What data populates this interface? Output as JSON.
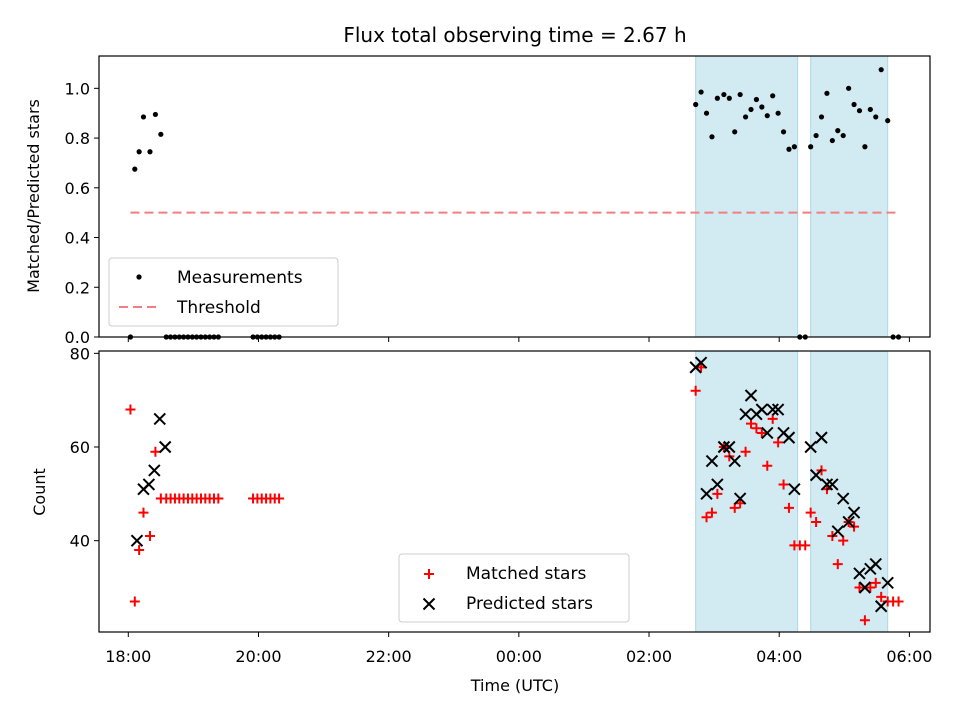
{
  "chart_data": [
    {
      "type": "scatter",
      "title": "Flux total observing time = 2.67 h",
      "xlabel": "",
      "ylabel": "Matched/Predicted stars",
      "ylim": [
        0,
        1.13
      ],
      "yticks": [
        "0.0",
        "0.2",
        "0.4",
        "0.6",
        "0.8",
        "1.0"
      ],
      "legend_position": "lower-left",
      "series": [
        {
          "name": "Measurements",
          "color": "#000000",
          "marker": "dot",
          "points": [
            [
              "18:02",
              0
            ],
            [
              "18:06",
              0.675
            ],
            [
              "18:10",
              0.745
            ],
            [
              "18:14",
              0.885
            ],
            [
              "18:20",
              0.745
            ],
            [
              "18:25",
              0.895
            ],
            [
              "18:30",
              0.815
            ],
            [
              "18:35",
              0
            ],
            [
              "18:39",
              0
            ],
            [
              "18:43",
              0
            ],
            [
              "18:47",
              0
            ],
            [
              "18:51",
              0
            ],
            [
              "18:55",
              0
            ],
            [
              "18:59",
              0
            ],
            [
              "19:03",
              0
            ],
            [
              "19:07",
              0
            ],
            [
              "19:11",
              0
            ],
            [
              "19:15",
              0
            ],
            [
              "19:19",
              0
            ],
            [
              "19:23",
              0
            ],
            [
              "19:55",
              0
            ],
            [
              "19:59",
              0
            ],
            [
              "20:03",
              0
            ],
            [
              "20:07",
              0
            ],
            [
              "20:11",
              0
            ],
            [
              "20:15",
              0
            ],
            [
              "20:19",
              0
            ],
            [
              "02:43",
              0.935
            ],
            [
              "02:48",
              0.985
            ],
            [
              "02:53",
              0.9
            ],
            [
              "02:58",
              0.805
            ],
            [
              "03:03",
              0.96
            ],
            [
              "03:09",
              0.975
            ],
            [
              "03:14",
              0.96
            ],
            [
              "03:19",
              0.825
            ],
            [
              "03:24",
              0.975
            ],
            [
              "03:29",
              0.885
            ],
            [
              "03:34",
              0.915
            ],
            [
              "03:39",
              0.955
            ],
            [
              "03:44",
              0.925
            ],
            [
              "03:49",
              0.89
            ],
            [
              "03:54",
              0.97
            ],
            [
              "03:59",
              0.9
            ],
            [
              "04:04",
              0.825
            ],
            [
              "04:09",
              0.755
            ],
            [
              "04:14",
              0.765
            ],
            [
              "04:19",
              0
            ],
            [
              "04:24",
              0
            ],
            [
              "04:29",
              0.765
            ],
            [
              "04:34",
              0.81
            ],
            [
              "04:39",
              0.885
            ],
            [
              "04:44",
              0.98
            ],
            [
              "04:49",
              0.79
            ],
            [
              "04:54",
              0.83
            ],
            [
              "04:59",
              0.81
            ],
            [
              "05:04",
              1.0
            ],
            [
              "05:09",
              0.935
            ],
            [
              "05:14",
              0.91
            ],
            [
              "05:19",
              0.765
            ],
            [
              "05:24",
              0.915
            ],
            [
              "05:29",
              0.885
            ],
            [
              "05:34",
              1.075
            ],
            [
              "05:40",
              0.87
            ],
            [
              "05:45",
              0
            ],
            [
              "05:50",
              0
            ]
          ]
        },
        {
          "name": "Threshold",
          "color": "#f08080",
          "style": "dashed",
          "y": 0.5,
          "x_range": [
            "18:02",
            "05:50"
          ]
        }
      ]
    },
    {
      "type": "scatter",
      "title": "",
      "xlabel": "Time (UTC)",
      "ylabel": "Count",
      "ylim": [
        20.5,
        80.5
      ],
      "yticks": [
        "40",
        "60",
        "80"
      ],
      "xticks": [
        "18:00",
        "20:00",
        "22:00",
        "00:00",
        "02:00",
        "04:00",
        "06:00"
      ],
      "legend_position": "lower-center",
      "series": [
        {
          "name": "Matched stars",
          "color": "#ff0000",
          "marker": "plus",
          "points": [
            [
              "18:02",
              68
            ],
            [
              "18:06",
              27
            ],
            [
              "18:10",
              38
            ],
            [
              "18:14",
              46
            ],
            [
              "18:20",
              41
            ],
            [
              "18:25",
              59
            ],
            [
              "18:30",
              49
            ],
            [
              "18:35",
              49
            ],
            [
              "18:39",
              49
            ],
            [
              "18:43",
              49
            ],
            [
              "18:47",
              49
            ],
            [
              "18:51",
              49
            ],
            [
              "18:55",
              49
            ],
            [
              "18:59",
              49
            ],
            [
              "19:03",
              49
            ],
            [
              "19:07",
              49
            ],
            [
              "19:11",
              49
            ],
            [
              "19:15",
              49
            ],
            [
              "19:19",
              49
            ],
            [
              "19:23",
              49
            ],
            [
              "19:55",
              49
            ],
            [
              "19:59",
              49
            ],
            [
              "20:03",
              49
            ],
            [
              "20:07",
              49
            ],
            [
              "20:11",
              49
            ],
            [
              "20:15",
              49
            ],
            [
              "20:19",
              49
            ],
            [
              "02:43",
              72
            ],
            [
              "02:48",
              77
            ],
            [
              "02:53",
              45
            ],
            [
              "02:58",
              46
            ],
            [
              "03:03",
              50
            ],
            [
              "03:09",
              60
            ],
            [
              "03:14",
              58
            ],
            [
              "03:19",
              47
            ],
            [
              "03:24",
              48
            ],
            [
              "03:29",
              59
            ],
            [
              "03:34",
              65
            ],
            [
              "03:39",
              64
            ],
            [
              "03:44",
              63
            ],
            [
              "03:49",
              56
            ],
            [
              "03:54",
              66
            ],
            [
              "03:59",
              61
            ],
            [
              "04:04",
              52
            ],
            [
              "04:09",
              47
            ],
            [
              "04:14",
              39
            ],
            [
              "04:19",
              39
            ],
            [
              "04:24",
              39
            ],
            [
              "04:29",
              46
            ],
            [
              "04:34",
              44
            ],
            [
              "04:39",
              55
            ],
            [
              "04:44",
              51
            ],
            [
              "04:49",
              41
            ],
            [
              "04:54",
              35
            ],
            [
              "04:59",
              40
            ],
            [
              "05:04",
              44
            ],
            [
              "05:09",
              43
            ],
            [
              "05:14",
              30
            ],
            [
              "05:19",
              23
            ],
            [
              "05:24",
              30
            ],
            [
              "05:29",
              31
            ],
            [
              "05:34",
              28
            ],
            [
              "05:40",
              27
            ],
            [
              "05:45",
              27
            ],
            [
              "05:50",
              27
            ]
          ]
        },
        {
          "name": "Predicted stars",
          "color": "#000000",
          "marker": "x",
          "points": [
            [
              "18:08",
              40
            ],
            [
              "18:14",
              51
            ],
            [
              "18:19",
              52
            ],
            [
              "18:24",
              55
            ],
            [
              "18:29",
              66
            ],
            [
              "18:34",
              60
            ],
            [
              "02:43",
              77
            ],
            [
              "02:48",
              78
            ],
            [
              "02:53",
              50
            ],
            [
              "02:58",
              57
            ],
            [
              "03:03",
              52
            ],
            [
              "03:09",
              60
            ],
            [
              "03:14",
              60
            ],
            [
              "03:19",
              57
            ],
            [
              "03:24",
              49
            ],
            [
              "03:29",
              67
            ],
            [
              "03:34",
              71
            ],
            [
              "03:39",
              67
            ],
            [
              "03:44",
              68
            ],
            [
              "03:49",
              63
            ],
            [
              "03:54",
              68
            ],
            [
              "03:59",
              68
            ],
            [
              "04:04",
              63
            ],
            [
              "04:09",
              62
            ],
            [
              "04:14",
              51
            ],
            [
              "04:29",
              60
            ],
            [
              "04:34",
              54
            ],
            [
              "04:39",
              62
            ],
            [
              "04:44",
              52
            ],
            [
              "04:49",
              52
            ],
            [
              "04:54",
              42
            ],
            [
              "04:59",
              49
            ],
            [
              "05:04",
              44
            ],
            [
              "05:09",
              46
            ],
            [
              "05:14",
              33
            ],
            [
              "05:19",
              30
            ],
            [
              "05:24",
              34
            ],
            [
              "05:29",
              35
            ],
            [
              "05:34",
              26
            ],
            [
              "05:40",
              31
            ]
          ]
        }
      ]
    }
  ],
  "shaded_intervals": [
    [
      "02:43",
      "04:17"
    ],
    [
      "04:29",
      "05:40"
    ]
  ],
  "shade_color": "#add8e6",
  "x_range": [
    "17:33",
    "06:19"
  ]
}
